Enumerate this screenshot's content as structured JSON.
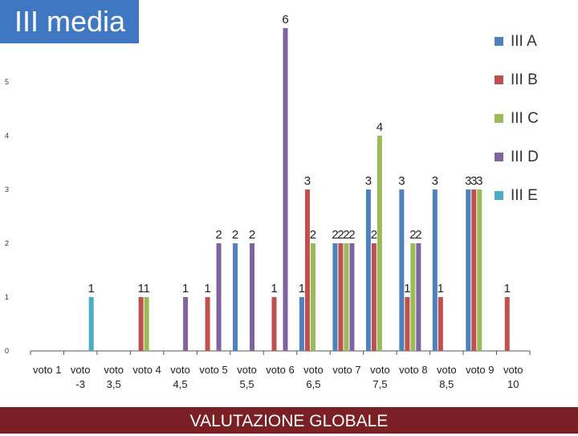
{
  "slide": {
    "title": "III media",
    "footer": "VALUTAZIONE GLOBALE"
  },
  "chart_data": {
    "type": "bar",
    "categories": [
      "voto 1",
      "voto -3",
      "voto 3,5",
      "voto 4",
      "voto 4,5",
      "voto 5",
      "voto 5,5",
      "voto 6",
      "voto 6,5",
      "voto 7",
      "voto 7,5",
      "voto 8",
      "voto 8,5",
      "voto 9",
      "voto 10"
    ],
    "category_display": [
      [
        "voto 1",
        ""
      ],
      [
        "voto",
        "-3"
      ],
      [
        "voto",
        "3,5"
      ],
      [
        "voto 4",
        ""
      ],
      [
        "voto",
        "4,5"
      ],
      [
        "voto 5",
        ""
      ],
      [
        "voto",
        "5,5"
      ],
      [
        "voto 6",
        ""
      ],
      [
        "voto",
        "6,5"
      ],
      [
        "voto 7",
        ""
      ],
      [
        "voto",
        "7,5"
      ],
      [
        "voto 8",
        ""
      ],
      [
        "voto",
        "8,5"
      ],
      [
        "voto 9",
        ""
      ],
      [
        "voto",
        "10"
      ]
    ],
    "series": [
      {
        "name": "III A",
        "color": "#4f81bd",
        "values": [
          0,
          0,
          0,
          0,
          0,
          0,
          2,
          0,
          1,
          2,
          3,
          3,
          3,
          3,
          0
        ]
      },
      {
        "name": "III B",
        "color": "#c0504d",
        "values": [
          0,
          0,
          0,
          1,
          0,
          1,
          0,
          1,
          3,
          2,
          2,
          1,
          1,
          3,
          1
        ]
      },
      {
        "name": "III C",
        "color": "#9bbb59",
        "values": [
          0,
          0,
          0,
          1,
          0,
          0,
          0,
          0,
          2,
          2,
          4,
          2,
          0,
          3,
          0
        ]
      },
      {
        "name": "III D",
        "color": "#8064a2",
        "values": [
          0,
          0,
          0,
          0,
          1,
          2,
          2,
          6,
          0,
          2,
          0,
          2,
          0,
          0,
          0
        ]
      },
      {
        "name": "III E",
        "color": "#4bacc6",
        "values": [
          0,
          1,
          0,
          0,
          0,
          0,
          0,
          0,
          0,
          0,
          0,
          0,
          0,
          0,
          0
        ]
      }
    ],
    "ylim": [
      0,
      6
    ],
    "yticks": [
      0,
      1,
      2,
      3,
      4,
      5
    ],
    "grid": false,
    "legend": "right",
    "data_labels": true
  }
}
